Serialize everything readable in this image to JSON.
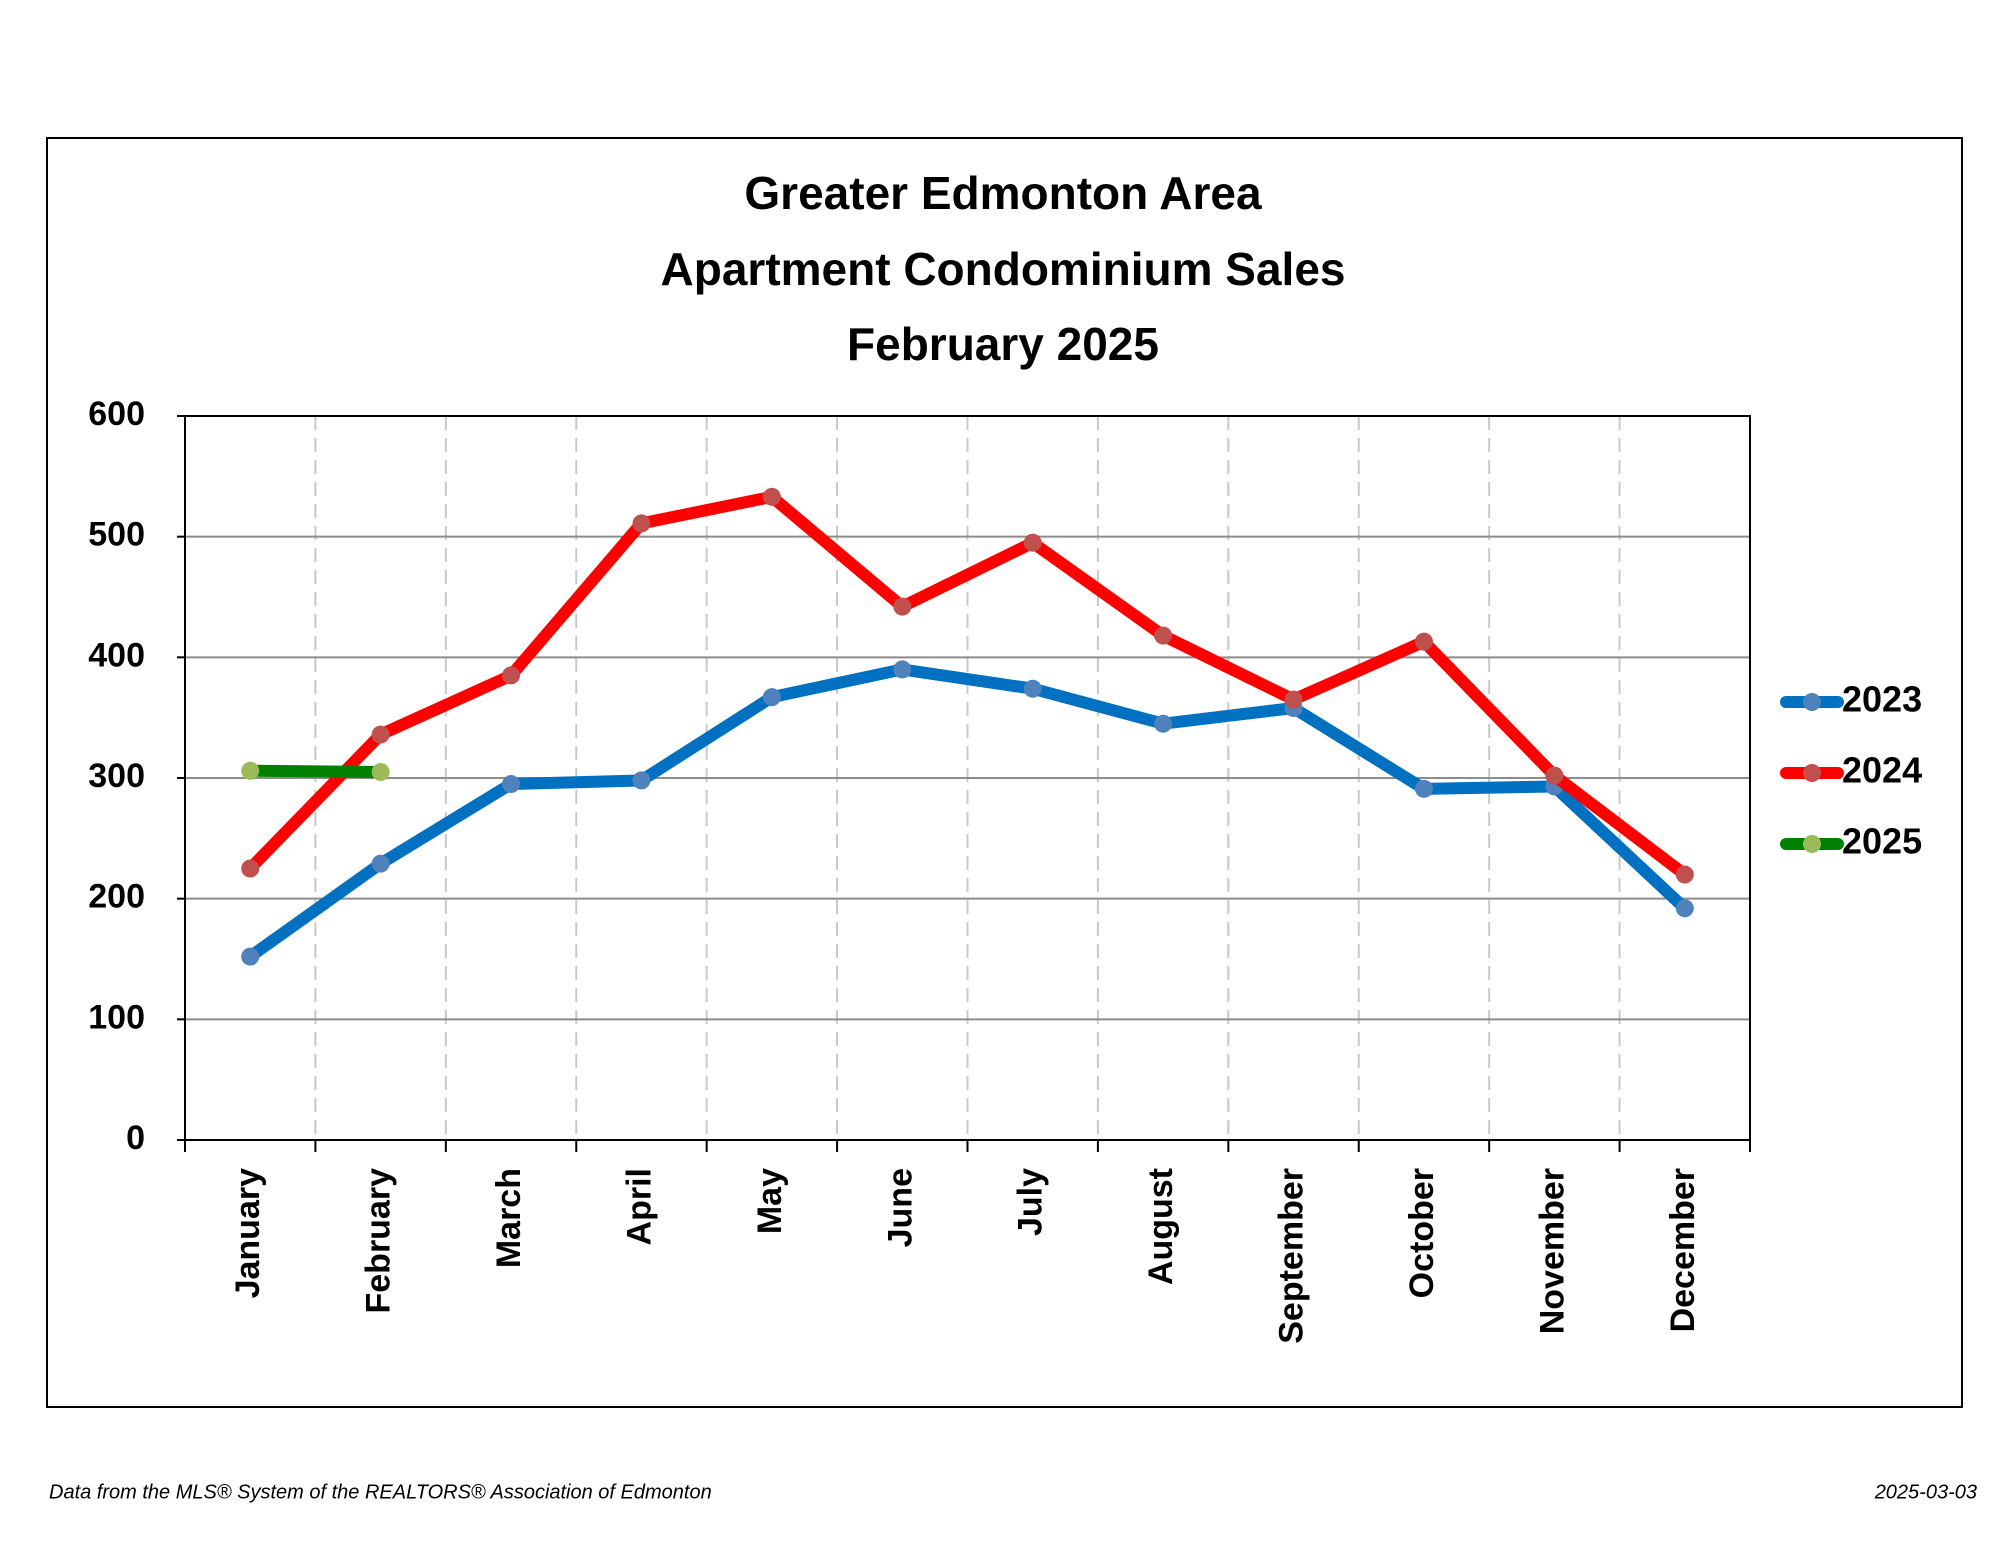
{
  "chart_data": {
    "type": "line",
    "title": [
      "Greater Edmonton Area",
      "Apartment Condominium Sales",
      "February 2025"
    ],
    "categories": [
      "January",
      "February",
      "March",
      "April",
      "May",
      "June",
      "July",
      "August",
      "September",
      "October",
      "November",
      "December"
    ],
    "series": [
      {
        "name": "2023",
        "color": "#0070c0",
        "marker_color": "#4f81bd",
        "values": [
          152,
          229,
          295,
          298,
          367,
          390,
          374,
          345,
          358,
          291,
          293,
          192
        ]
      },
      {
        "name": "2024",
        "color": "#ff0000",
        "marker_color": "#c0504d",
        "values": [
          225,
          336,
          385,
          511,
          533,
          442,
          495,
          418,
          365,
          413,
          302,
          220
        ]
      },
      {
        "name": "2025",
        "color": "#008000",
        "marker_color": "#9bbb59",
        "values": [
          306,
          305,
          null,
          null,
          null,
          null,
          null,
          null,
          null,
          null,
          null,
          null
        ]
      }
    ],
    "ylim": [
      0,
      600
    ],
    "yticks": [
      0,
      100,
      200,
      300,
      400,
      500,
      600
    ],
    "grid": true,
    "legend": "right",
    "footer_left": "Data from the MLS® System of the REALTORS® Association of Edmonton",
    "footer_right": "2025-03-03"
  }
}
